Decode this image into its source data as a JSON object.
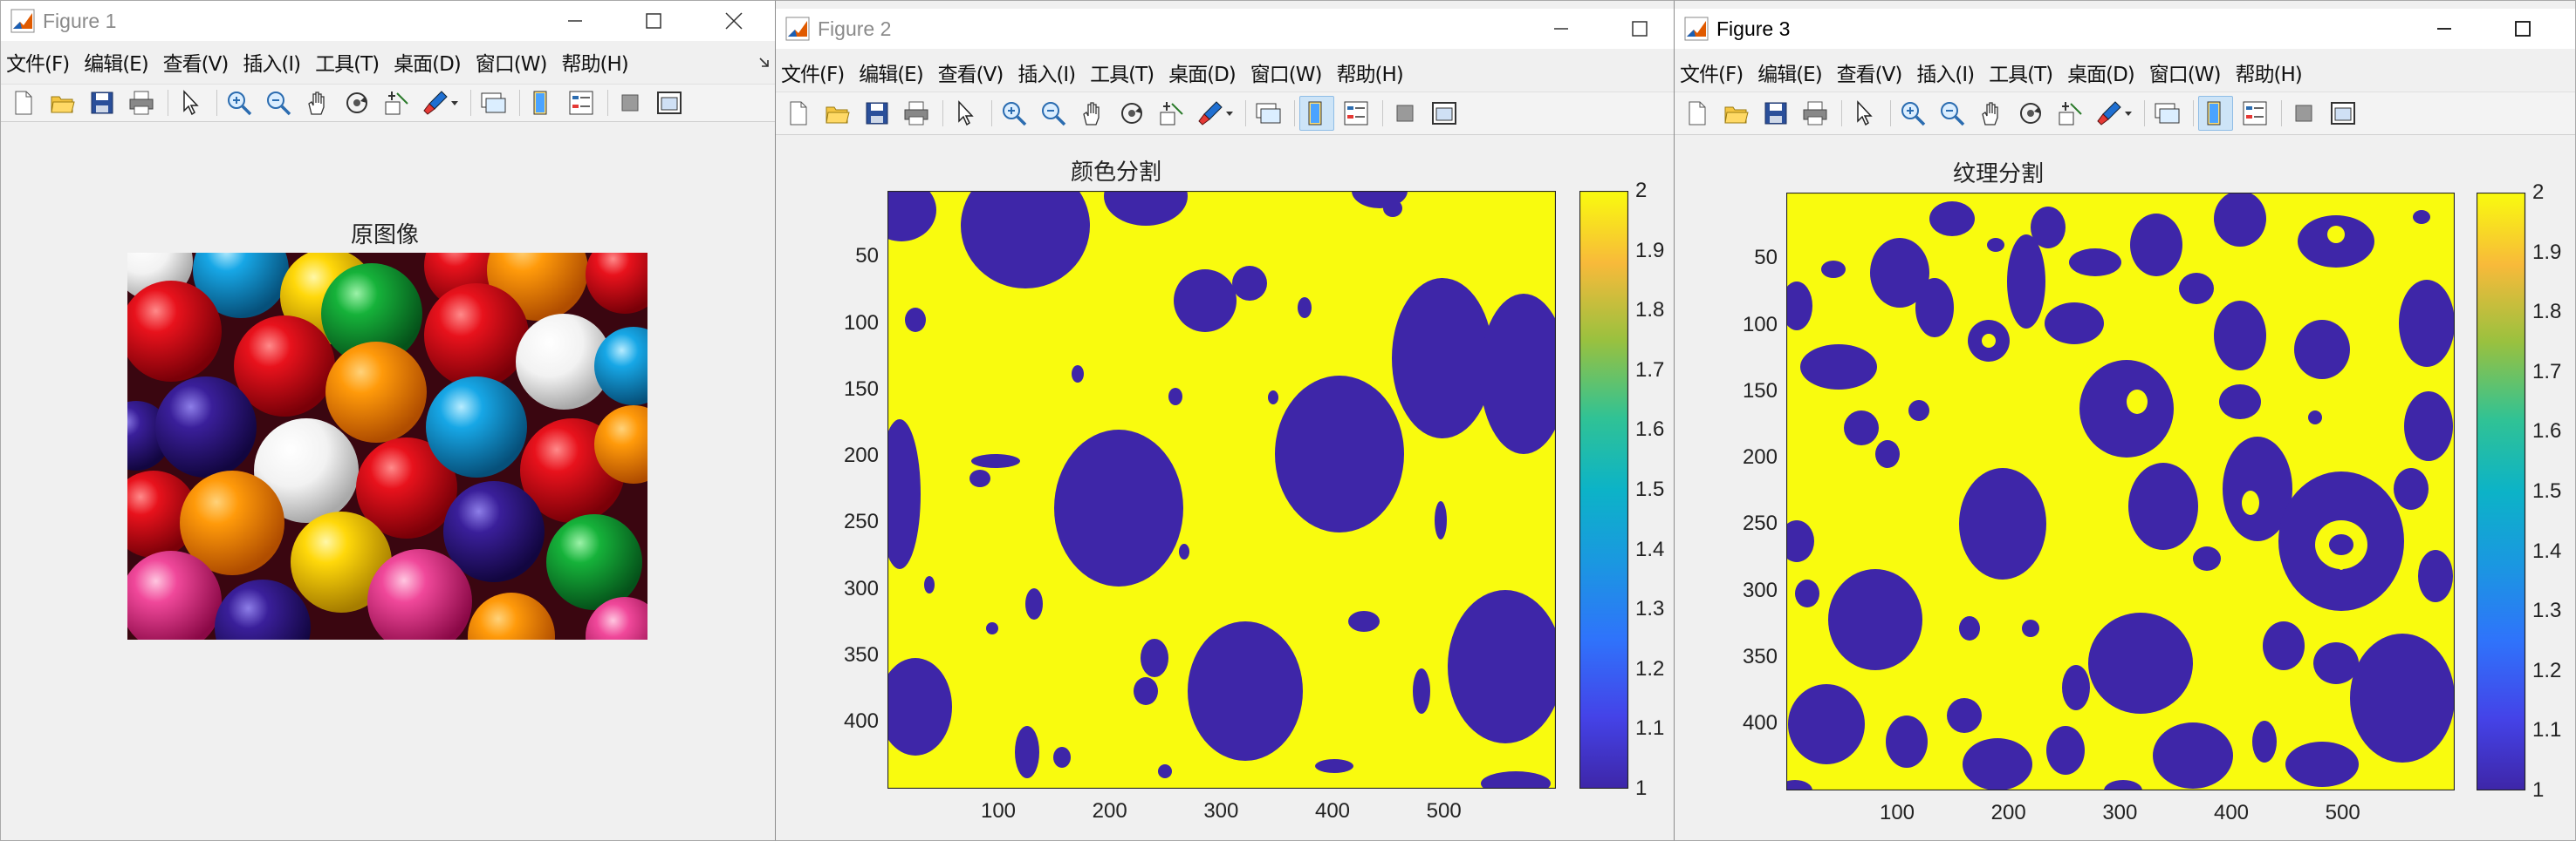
{
  "menu": [
    "文件(F)",
    "编辑(E)",
    "查看(V)",
    "插入(I)",
    "工具(T)",
    "桌面(D)",
    "窗口(W)",
    "帮助(H)"
  ],
  "figure1": {
    "window_title": "Figure 1",
    "plot_title": "原图像"
  },
  "figure2": {
    "window_title": "Figure 2",
    "plot_title": "颜色分割",
    "x_ticks": [
      "100",
      "200",
      "300",
      "400",
      "500"
    ],
    "y_ticks": [
      "50",
      "100",
      "150",
      "200",
      "250",
      "300",
      "350",
      "400"
    ],
    "colorbar_ticks": [
      "2",
      "1.9",
      "1.8",
      "1.7",
      "1.6",
      "1.5",
      "1.4",
      "1.3",
      "1.2",
      "1.1",
      "1"
    ]
  },
  "figure3": {
    "window_title": "Figure 3",
    "plot_title": "纹理分割",
    "x_ticks": [
      "100",
      "200",
      "300",
      "400",
      "500"
    ],
    "y_ticks": [
      "50",
      "100",
      "150",
      "200",
      "250",
      "300",
      "350",
      "400"
    ],
    "colorbar_ticks": [
      "2",
      "1.9",
      "1.8",
      "1.7",
      "1.6",
      "1.5",
      "1.4",
      "1.3",
      "1.2",
      "1.1",
      "1"
    ]
  },
  "colors": {
    "segment_low": "#3e26a8",
    "segment_high": "#f9fb0e"
  },
  "toolbar_icons": [
    "new-file-icon",
    "open-folder-icon",
    "save-icon",
    "print-icon",
    "pointer-icon",
    "zoom-in-icon",
    "zoom-out-icon",
    "pan-hand-icon",
    "rotate-3d-icon",
    "data-cursor-icon",
    "brush-icon",
    "link-plot-icon",
    "colorbar-icon",
    "legend-icon",
    "hide-plot-tools-icon",
    "show-plot-tools-icon"
  ]
}
